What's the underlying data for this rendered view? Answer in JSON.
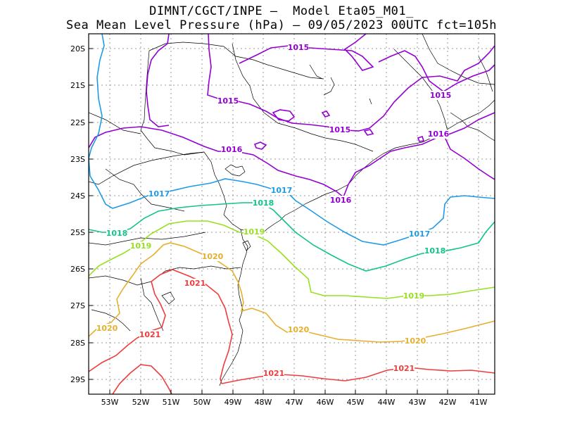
{
  "header": {
    "title_line1": "DIMNT/CGCT/INPE –  Model Eta05_M01_",
    "title_line2": "Sea Mean Level Pressure (hPa) – 09/05/2023 00UTC fct=105h"
  },
  "axes": {
    "lat_labels": [
      "20S",
      "21S",
      "22S",
      "23S",
      "24S",
      "25S",
      "26S",
      "27S",
      "28S",
      "29S"
    ],
    "lon_labels": [
      "53W",
      "52W",
      "51W",
      "50W",
      "49W",
      "48W",
      "47W",
      "46W",
      "45W",
      "44W",
      "43W",
      "42W",
      "41W"
    ]
  },
  "colors": {
    "c1015": "#9400d3",
    "c1016": "#9400d3",
    "c1017": "#1e9be6",
    "c1018": "#11c48a",
    "c1019": "#96e11e",
    "c1020": "#e6af2d",
    "c1021": "#f03c3c"
  },
  "contour_labels": [
    {
      "id": "l1015a",
      "text": "1015"
    },
    {
      "id": "l1015b",
      "text": "1015"
    },
    {
      "id": "l1015c",
      "text": "1015"
    },
    {
      "id": "l1015d",
      "text": "1015"
    },
    {
      "id": "l1016a",
      "text": "1016"
    },
    {
      "id": "l1016b",
      "text": "1016"
    },
    {
      "id": "l1016c",
      "text": "1016"
    },
    {
      "id": "l1017a",
      "text": "1017"
    },
    {
      "id": "l1017b",
      "text": "1017"
    },
    {
      "id": "l1017c",
      "text": "1017"
    },
    {
      "id": "l1018a",
      "text": "1018"
    },
    {
      "id": "l1018b",
      "text": "1018"
    },
    {
      "id": "l1018c",
      "text": "1018"
    },
    {
      "id": "l1019a",
      "text": "1019"
    },
    {
      "id": "l1019b",
      "text": "1019"
    },
    {
      "id": "l1019c",
      "text": "1019"
    },
    {
      "id": "l1020a",
      "text": "1020"
    },
    {
      "id": "l1020b",
      "text": "1020"
    },
    {
      "id": "l1020c",
      "text": "1020"
    },
    {
      "id": "l1020d",
      "text": "1020"
    },
    {
      "id": "l1021a",
      "text": "1021"
    },
    {
      "id": "l1021b",
      "text": "1021"
    },
    {
      "id": "l1021c",
      "text": "1021"
    },
    {
      "id": "l1021d",
      "text": "1021"
    }
  ]
}
